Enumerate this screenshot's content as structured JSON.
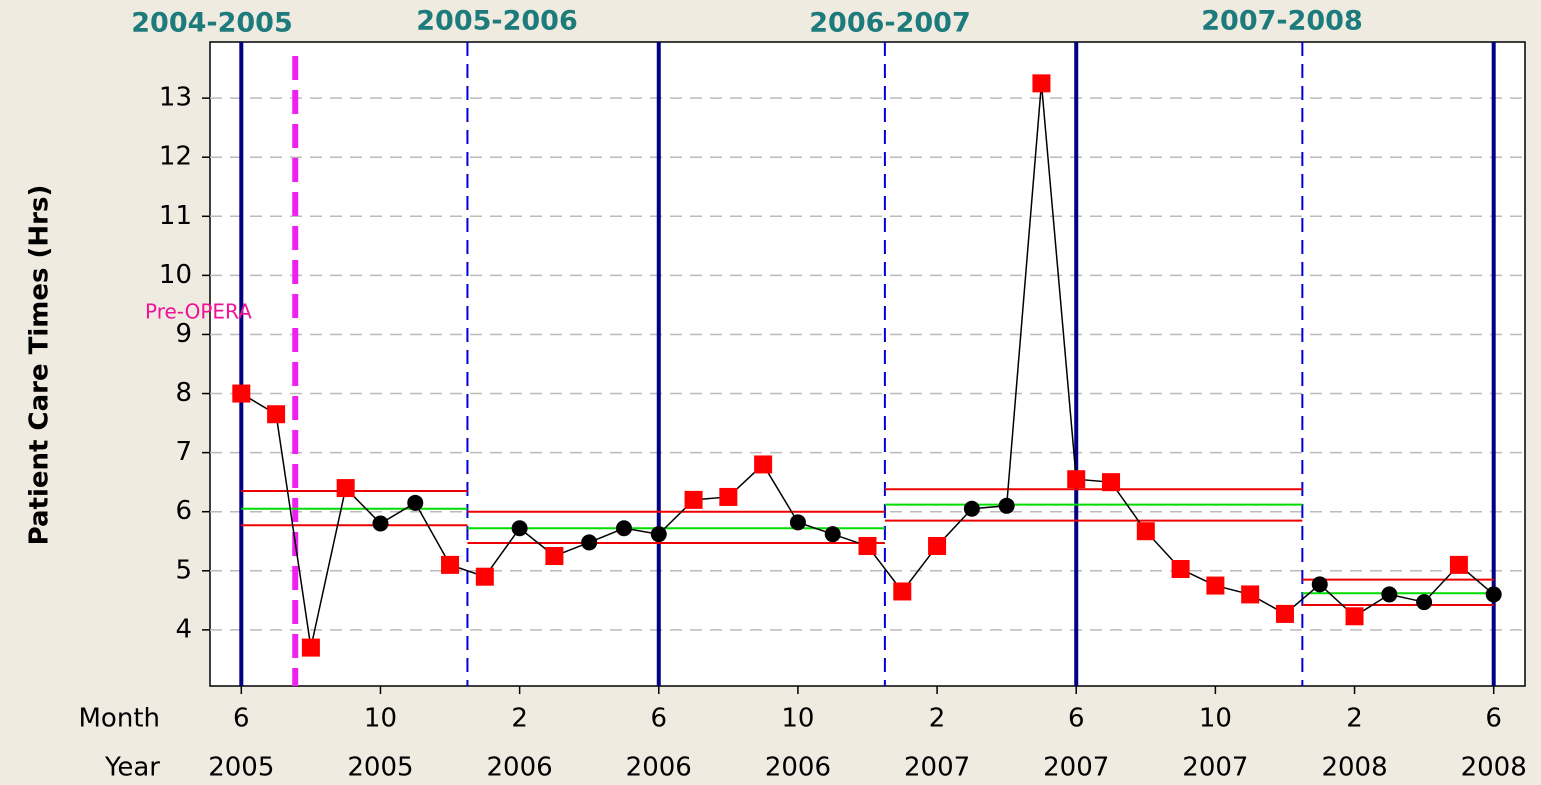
{
  "chart_data": {
    "type": "control",
    "ylabel": "Patient Care Times (Hrs)",
    "period_labels": [
      "2004-2005",
      "2005-2006",
      "2006-2007",
      "2007-2008"
    ],
    "x_row_labels": [
      "Month",
      "Year"
    ],
    "x": [
      0,
      1,
      2,
      3,
      4,
      5,
      6,
      7,
      8,
      9,
      10,
      11,
      12,
      13,
      14,
      15,
      16,
      17,
      18,
      19,
      20,
      21,
      22,
      23,
      24,
      25,
      26,
      27,
      28,
      29,
      30,
      31,
      32,
      33,
      34,
      35,
      36
    ],
    "values": [
      8.0,
      7.65,
      3.7,
      6.4,
      5.8,
      6.15,
      5.1,
      4.9,
      5.72,
      5.25,
      5.48,
      5.72,
      5.62,
      6.2,
      6.25,
      6.8,
      5.82,
      5.62,
      5.42,
      4.65,
      5.42,
      6.05,
      6.1,
      13.25,
      6.55,
      6.5,
      5.67,
      5.03,
      4.75,
      4.6,
      4.27,
      4.77,
      4.23,
      4.6,
      4.47,
      5.1,
      4.6
    ],
    "marker_colors": [
      "#ff0000",
      "#ff0000",
      "#ff0000",
      "#ff0000",
      "#000000",
      "#000000",
      "#ff0000",
      "#ff0000",
      "#000000",
      "#ff0000",
      "#000000",
      "#000000",
      "#000000",
      "#ff0000",
      "#ff0000",
      "#ff0000",
      "#000000",
      "#000000",
      "#ff0000",
      "#ff0000",
      "#ff0000",
      "#000000",
      "#000000",
      "#ff0000",
      "#ff0000",
      "#ff0000",
      "#ff0000",
      "#ff0000",
      "#ff0000",
      "#ff0000",
      "#ff0000",
      "#000000",
      "#ff0000",
      "#000000",
      "#000000",
      "#ff0000",
      "#000000"
    ],
    "limits": [
      {
        "start": 0,
        "end": 6.5,
        "center": 6.05,
        "ucl": 6.35,
        "lcl": 5.77
      },
      {
        "start": 6.5,
        "end": 18.5,
        "center": 5.72,
        "ucl": 6.0,
        "lcl": 5.47
      },
      {
        "start": 18.5,
        "end": 30.5,
        "center": 6.12,
        "ucl": 6.38,
        "lcl": 5.85
      },
      {
        "start": 30.5,
        "end": 36,
        "center": 4.62,
        "ucl": 4.85,
        "lcl": 4.42
      }
    ],
    "year_lines": [
      0,
      12,
      24,
      36
    ],
    "phase_lines": [
      6.5,
      18.5,
      30.5
    ],
    "intervention": {
      "x": 1.55,
      "label": "Pre-OPERA"
    },
    "xlim": [
      -0.9,
      36.9
    ],
    "ylim": [
      3.05,
      13.95
    ],
    "yticks": [
      4,
      5,
      6,
      7,
      8,
      9,
      10,
      11,
      12,
      13
    ],
    "xticks": [
      {
        "value": 0,
        "label": "6"
      },
      {
        "value": 4,
        "label": "10"
      },
      {
        "value": 8,
        "label": "2"
      },
      {
        "value": 12,
        "label": "6"
      },
      {
        "value": 16,
        "label": "10"
      },
      {
        "value": 20,
        "label": "2"
      },
      {
        "value": 24,
        "label": "6"
      },
      {
        "value": 28,
        "label": "10"
      },
      {
        "value": 32,
        "label": "2"
      },
      {
        "value": 36,
        "label": "6"
      }
    ],
    "xticks2": [
      {
        "value": 0,
        "label": "2005"
      },
      {
        "value": 4,
        "label": "2005"
      },
      {
        "value": 8,
        "label": "2006"
      },
      {
        "value": 12,
        "label": "2006"
      },
      {
        "value": 16,
        "label": "2006"
      },
      {
        "value": 20,
        "label": "2007"
      },
      {
        "value": 24,
        "label": "2007"
      },
      {
        "value": 28,
        "label": "2007"
      },
      {
        "value": 32,
        "label": "2008"
      },
      {
        "value": 36,
        "label": "2008"
      }
    ],
    "grid": true
  }
}
